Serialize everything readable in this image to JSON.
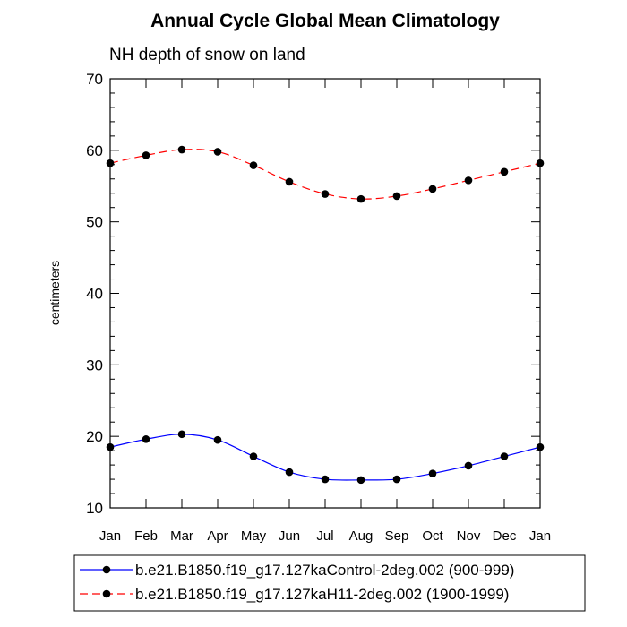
{
  "chart_data": {
    "type": "line",
    "title": "Annual Cycle Global Mean Climatology",
    "subtitle": "NH depth of snow on land",
    "xlabel": "",
    "ylabel": "centimeters",
    "categories": [
      "Jan",
      "Feb",
      "Mar",
      "Apr",
      "May",
      "Jun",
      "Jul",
      "Aug",
      "Sep",
      "Oct",
      "Nov",
      "Dec",
      "Jan"
    ],
    "ylim": [
      10,
      70
    ],
    "yticks": [
      10,
      20,
      30,
      40,
      50,
      60,
      70
    ],
    "ytick_labels": [
      "10",
      "20",
      "30",
      "40",
      "50",
      "60",
      "70"
    ],
    "series": [
      {
        "name": "b.e21.B1850.f19_g17.127kaControl-2deg.002 (900-999)",
        "color": "#0000ff",
        "dash": "solid",
        "values": [
          18.5,
          19.6,
          20.3,
          19.5,
          17.2,
          15.0,
          14.0,
          13.9,
          14.0,
          14.8,
          15.9,
          17.2,
          18.5
        ]
      },
      {
        "name": "b.e21.B1850.f19_g17.127kaH11-2deg.002 (1900-1999)",
        "color": "#ff0000",
        "dash": "dashed",
        "values": [
          58.2,
          59.3,
          60.1,
          59.8,
          57.9,
          55.6,
          53.9,
          53.2,
          53.6,
          54.6,
          55.8,
          57.0,
          58.2
        ]
      }
    ],
    "legend_position": "bottom"
  }
}
